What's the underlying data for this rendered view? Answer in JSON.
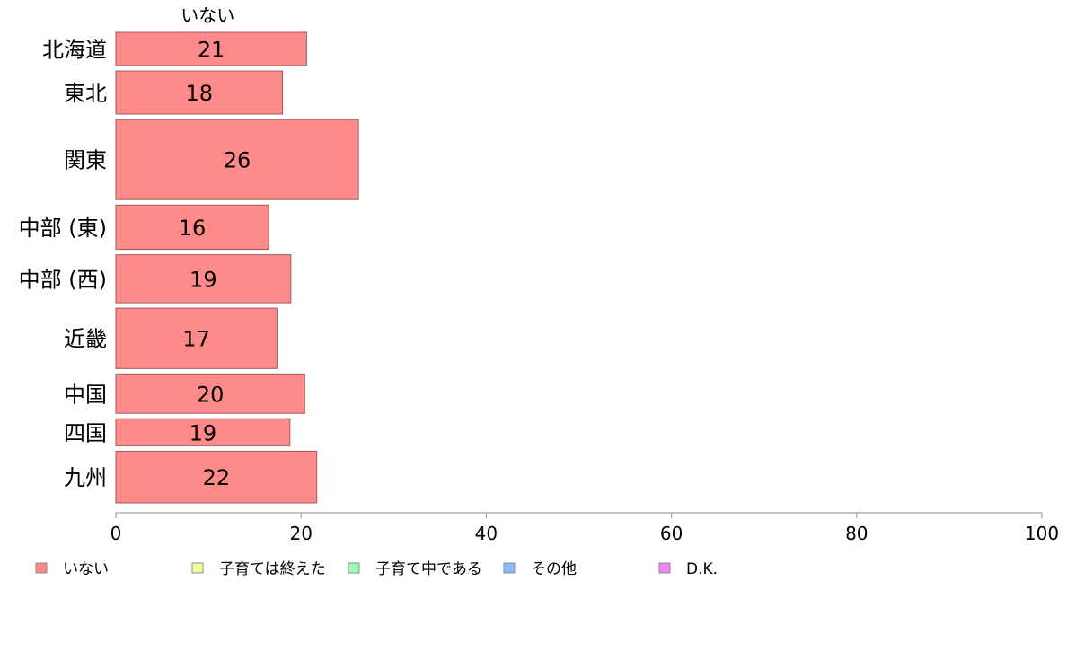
{
  "chart_data": {
    "type": "bar",
    "orientation": "horizontal",
    "stacked": true,
    "series_header": "いない",
    "categories": [
      "北海道",
      "東北",
      "関東",
      "中部 (東)",
      "中部 (西)",
      "近畿",
      "中国",
      "四国",
      "九州"
    ],
    "category_weights": [
      0.54,
      0.7,
      1.3,
      0.72,
      0.78,
      0.98,
      0.64,
      0.44,
      0.84
    ],
    "series": [
      {
        "name": "いない",
        "color": "#ff8a8a",
        "values": [
          20.6,
          18.0,
          26.2,
          16.5,
          18.9,
          17.4,
          20.4,
          18.8,
          21.7
        ],
        "labels": [
          "21",
          "18",
          "26",
          "16",
          "19",
          "17",
          "20",
          "19",
          "22"
        ]
      },
      {
        "name": "子育ては終えた",
        "color": "#eeff99",
        "values": [
          null,
          null,
          null,
          null,
          null,
          null,
          null,
          null,
          null
        ],
        "labels": []
      },
      {
        "name": "子育て中である",
        "color": "#99ffbb",
        "values": [
          null,
          null,
          null,
          null,
          null,
          null,
          null,
          null,
          null
        ],
        "labels": []
      },
      {
        "name": "その他",
        "color": "#8ab8ff",
        "values": [
          null,
          null,
          null,
          null,
          null,
          null,
          null,
          null,
          null
        ],
        "labels": []
      },
      {
        "name": "D.K.",
        "color": "#ee88ee",
        "values": [
          null,
          null,
          null,
          null,
          null,
          null,
          null,
          null,
          null
        ],
        "labels": []
      }
    ],
    "xlim": [
      0,
      100
    ],
    "xticks": [
      "0",
      "20",
      "40",
      "60",
      "80",
      "100"
    ],
    "grid": false,
    "legend_position": "bottom"
  }
}
